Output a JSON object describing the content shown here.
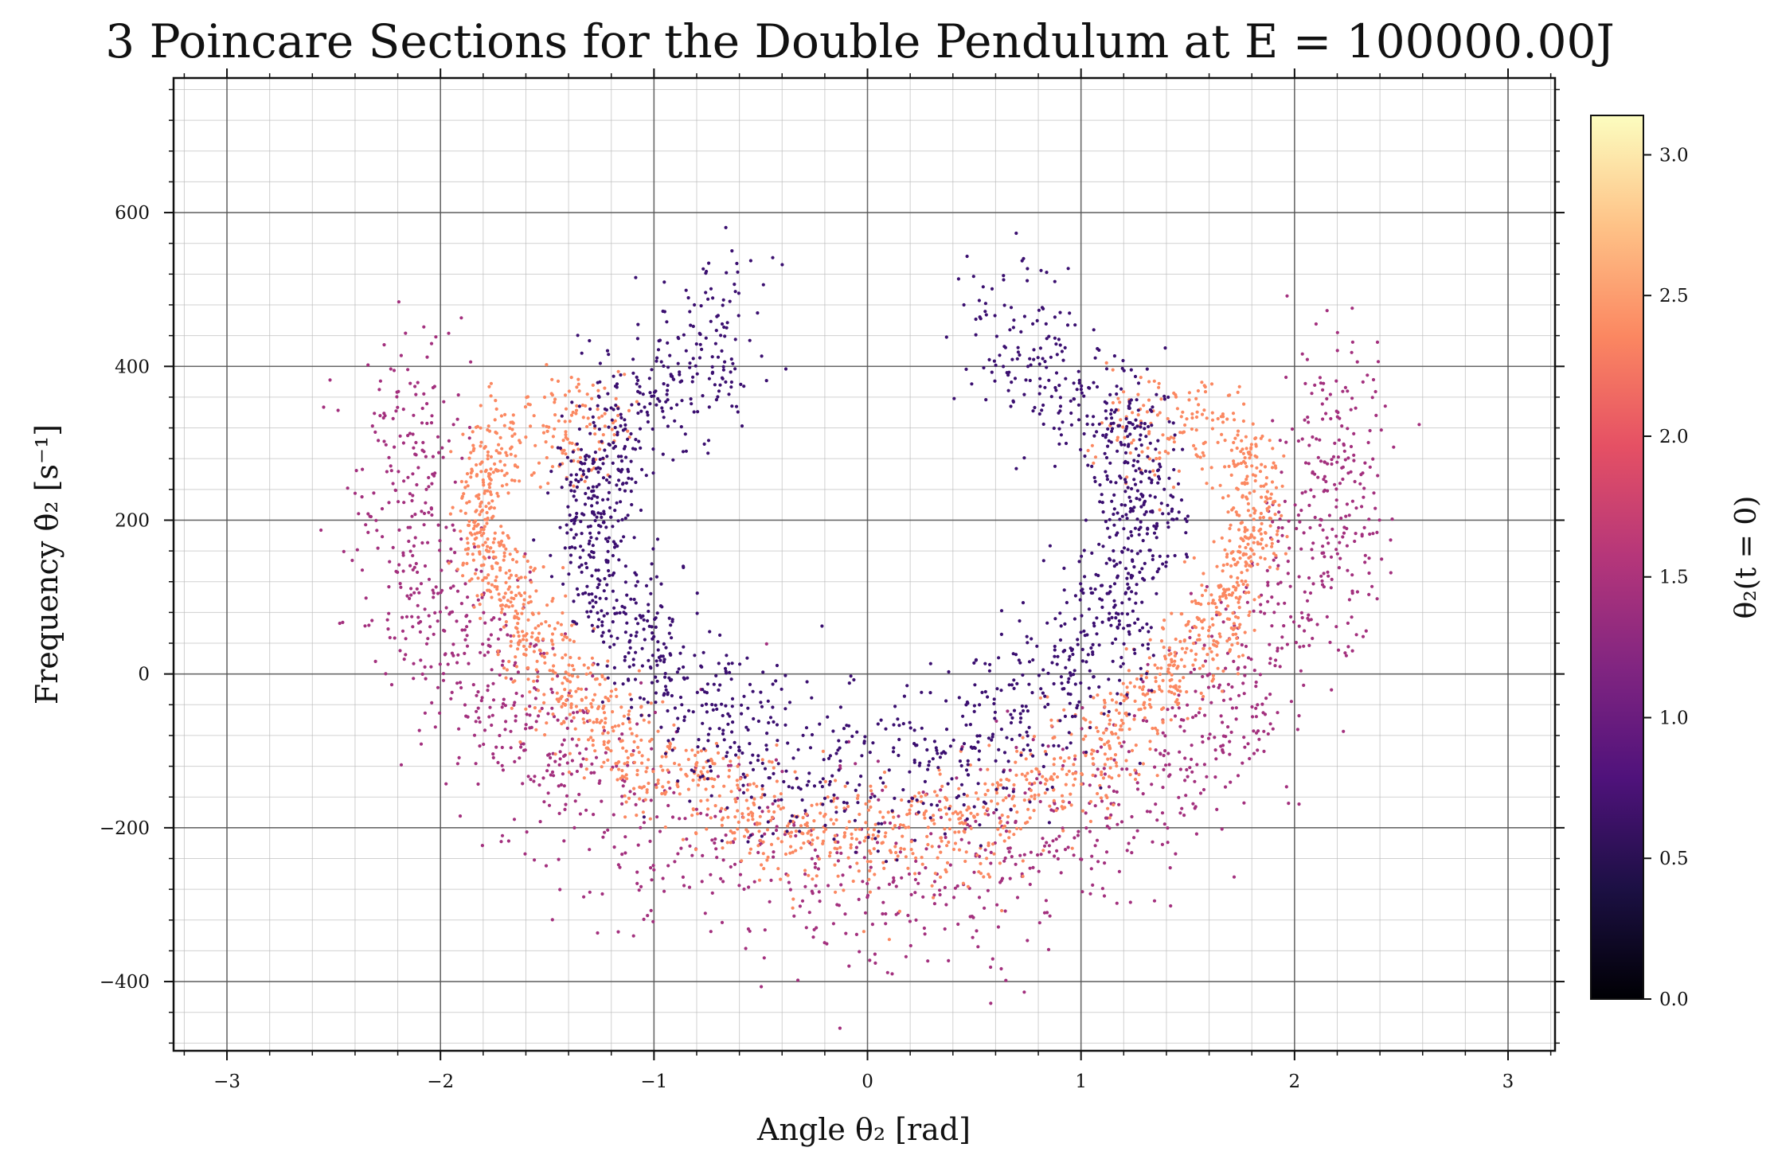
{
  "chart_data": {
    "type": "scatter",
    "title": "3 Poincare Sections for the Double Pendulum at E = 100000.00J",
    "xlabel": "Angle θ₂ [rad]",
    "ylabel": "Frequency θ̇₂ [s⁻¹]",
    "xlim": [
      -3.25,
      3.22
    ],
    "ylim": [
      -490,
      775
    ],
    "x_ticks": [
      -3,
      -2,
      -1,
      0,
      1,
      2,
      3
    ],
    "x_tick_labels": [
      "−3",
      "−2",
      "−1",
      "0",
      "1",
      "2",
      "3"
    ],
    "y_ticks": [
      -400,
      -200,
      0,
      200,
      400,
      600
    ],
    "y_tick_labels": [
      "−400",
      "−200",
      "0",
      "200",
      "400",
      "600"
    ],
    "grid": true,
    "colorbar": {
      "label": "θ₂(t = 0)",
      "colormap": "magma",
      "range": [
        0.0,
        3.14
      ],
      "ticks": [
        0.0,
        0.5,
        1.0,
        1.5,
        2.0,
        2.5,
        3.0
      ],
      "tick_labels": [
        "0.0",
        "0.5",
        "1.0",
        "1.5",
        "2.0",
        "2.5",
        "3.0"
      ]
    },
    "series": [
      {
        "color_value": 0.7,
        "color": "#3b0f70",
        "outline": [
          [
            -0.55,
            460
          ],
          [
            -0.85,
            400
          ],
          [
            -1.15,
            330
          ],
          [
            -1.3,
            260
          ],
          [
            -1.3,
            180
          ],
          [
            -1.15,
            80
          ],
          [
            -0.85,
            -20
          ],
          [
            -0.5,
            -90
          ],
          [
            -0.2,
            -120
          ],
          [
            0.0,
            -125
          ],
          [
            0.2,
            -120
          ],
          [
            0.5,
            -90
          ],
          [
            0.85,
            -20
          ],
          [
            1.15,
            80
          ],
          [
            1.3,
            180
          ],
          [
            1.3,
            260
          ],
          [
            1.15,
            330
          ],
          [
            0.85,
            400
          ],
          [
            0.55,
            460
          ]
        ]
      },
      {
        "color_value": 1.2,
        "color": "#a3307e",
        "outline": [
          [
            -2.1,
            360
          ],
          [
            -2.2,
            250
          ],
          [
            -2.1,
            120
          ],
          [
            -1.7,
            -40
          ],
          [
            -1.2,
            -170
          ],
          [
            -0.6,
            -240
          ],
          [
            0.0,
            -265
          ],
          [
            0.6,
            -240
          ],
          [
            1.2,
            -170
          ],
          [
            1.7,
            -40
          ],
          [
            2.1,
            120
          ],
          [
            2.25,
            250
          ],
          [
            2.15,
            360
          ]
        ]
      },
      {
        "color_value": 2.6,
        "color": "#fb8861",
        "outline": [
          [
            -1.15,
            330
          ],
          [
            -1.75,
            300
          ],
          [
            -1.85,
            200
          ],
          [
            -1.6,
            50
          ],
          [
            -1.1,
            -100
          ],
          [
            -0.5,
            -190
          ],
          [
            0.0,
            -210
          ],
          [
            0.5,
            -190
          ],
          [
            1.1,
            -100
          ],
          [
            1.6,
            50
          ],
          [
            1.85,
            200
          ],
          [
            1.75,
            300
          ],
          [
            1.15,
            330
          ]
        ]
      }
    ]
  }
}
